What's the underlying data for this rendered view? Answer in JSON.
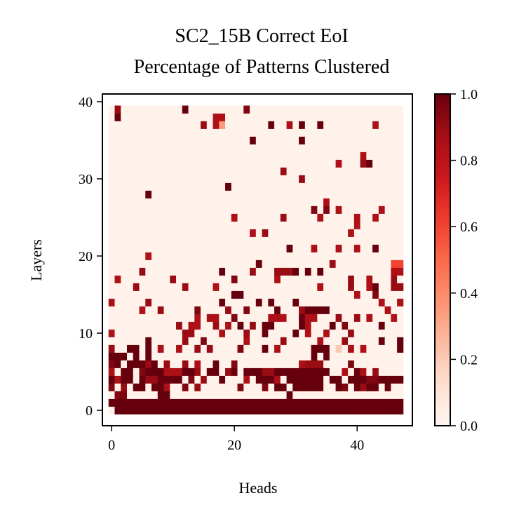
{
  "chart_data": {
    "type": "heatmap",
    "title_lines": [
      "SC2_15B Correct EoI",
      "Percentage of Patterns Clustered"
    ],
    "xlabel": "Heads",
    "ylabel": "Layers",
    "x_ticks": [
      "0",
      "20",
      "40"
    ],
    "y_ticks": [
      "0",
      "10",
      "20",
      "30",
      "40"
    ],
    "colorbar_ticks": [
      "0.0",
      "0.2",
      "0.4",
      "0.6",
      "0.8",
      "1.0"
    ],
    "n_heads": 48,
    "n_layers": 40,
    "xlim": [
      -1.5,
      49
    ],
    "ylim": [
      -2,
      41
    ],
    "vmin": 0.0,
    "vmax": 1.0,
    "colormap": "Reds",
    "background_value": 0.02,
    "notes_rows": "rows list [layer, [[head_start, head_end_inclusive, value], ...]]; cells not listed hold background_value",
    "rows": [
      [
        0,
        [
          [
            1,
            47,
            1.0
          ]
        ]
      ],
      [
        1,
        [
          [
            0,
            0,
            1.0
          ],
          [
            1,
            47,
            1.0
          ]
        ]
      ],
      [
        2,
        [
          [
            1,
            2,
            0.95
          ],
          [
            8,
            8,
            1.0
          ],
          [
            9,
            9,
            1.0
          ],
          [
            29,
            29,
            1.0
          ]
        ]
      ],
      [
        3,
        [
          [
            0,
            0,
            0.95
          ],
          [
            2,
            2,
            0.9
          ],
          [
            4,
            5,
            1.0
          ],
          [
            7,
            8,
            1.0
          ],
          [
            9,
            9,
            0.85
          ],
          [
            12,
            12,
            0.95
          ],
          [
            14,
            14,
            0.9
          ],
          [
            21,
            21,
            0.95
          ],
          [
            25,
            25,
            0.95
          ],
          [
            27,
            28,
            1.0
          ],
          [
            30,
            34,
            1.0
          ],
          [
            37,
            37,
            1.0
          ],
          [
            38,
            38,
            0.95
          ],
          [
            40,
            40,
            1.0
          ],
          [
            41,
            41,
            0.9
          ],
          [
            42,
            43,
            1.0
          ],
          [
            45,
            45,
            1.0
          ]
        ]
      ],
      [
        4,
        [
          [
            0,
            0,
            1.0
          ],
          [
            1,
            1,
            0.85
          ],
          [
            2,
            3,
            1.0
          ],
          [
            5,
            5,
            1.0
          ],
          [
            6,
            7,
            0.9
          ],
          [
            8,
            11,
            1.0
          ],
          [
            13,
            13,
            0.95
          ],
          [
            15,
            15,
            0.9
          ],
          [
            18,
            18,
            1.0
          ],
          [
            22,
            22,
            0.85
          ],
          [
            24,
            26,
            1.0
          ],
          [
            27,
            27,
            0.85
          ],
          [
            29,
            34,
            1.0
          ],
          [
            36,
            37,
            1.0
          ],
          [
            39,
            41,
            1.0
          ],
          [
            42,
            43,
            0.95
          ],
          [
            44,
            47,
            1.0
          ]
        ]
      ],
      [
        5,
        [
          [
            0,
            0,
            0.85
          ],
          [
            2,
            3,
            1.0
          ],
          [
            5,
            5,
            0.95
          ],
          [
            6,
            8,
            1.0
          ],
          [
            9,
            11,
            0.85
          ],
          [
            12,
            13,
            1.0
          ],
          [
            14,
            14,
            0.9
          ],
          [
            16,
            17,
            1.0
          ],
          [
            19,
            19,
            0.9
          ],
          [
            20,
            20,
            1.0
          ],
          [
            22,
            24,
            1.0
          ],
          [
            25,
            26,
            0.9
          ],
          [
            27,
            35,
            1.0
          ],
          [
            38,
            38,
            0.85
          ],
          [
            40,
            40,
            1.0
          ],
          [
            41,
            41,
            0.85
          ],
          [
            43,
            43,
            0.9
          ]
        ]
      ],
      [
        6,
        [
          [
            0,
            0,
            0.95
          ],
          [
            1,
            1,
            1.0
          ],
          [
            3,
            5,
            1.0
          ],
          [
            6,
            6,
            0.9
          ],
          [
            7,
            7,
            1.0
          ],
          [
            9,
            9,
            0.9
          ],
          [
            12,
            12,
            0.9
          ],
          [
            14,
            14,
            0.85
          ],
          [
            17,
            17,
            1.0
          ],
          [
            20,
            20,
            0.95
          ],
          [
            31,
            31,
            0.85
          ],
          [
            32,
            34,
            0.9
          ],
          [
            39,
            39,
            0.95
          ]
        ]
      ],
      [
        7,
        [
          [
            0,
            2,
            1.0
          ],
          [
            4,
            4,
            1.0
          ],
          [
            6,
            6,
            1.0
          ],
          [
            33,
            33,
            1.0
          ],
          [
            35,
            35,
            1.0
          ]
        ]
      ],
      [
        8,
        [
          [
            0,
            0,
            0.9
          ],
          [
            3,
            4,
            1.0
          ],
          [
            6,
            6,
            1.0
          ],
          [
            8,
            8,
            0.85
          ],
          [
            11,
            11,
            0.85
          ],
          [
            14,
            14,
            0.9
          ],
          [
            16,
            16,
            0.9
          ],
          [
            21,
            21,
            0.95
          ],
          [
            25,
            25,
            1.0
          ],
          [
            27,
            27,
            0.85
          ],
          [
            33,
            35,
            1.0
          ],
          [
            37,
            37,
            0.2
          ],
          [
            39,
            39,
            0.85
          ],
          [
            41,
            41,
            0.85
          ],
          [
            47,
            47,
            1.0
          ]
        ]
      ],
      [
        9,
        [
          [
            6,
            6,
            1.0
          ],
          [
            12,
            12,
            0.9
          ],
          [
            15,
            15,
            0.95
          ],
          [
            22,
            22,
            0.85
          ],
          [
            28,
            28,
            0.9
          ],
          [
            34,
            34,
            0.85
          ],
          [
            38,
            38,
            0.9
          ],
          [
            44,
            44,
            1.0
          ],
          [
            47,
            47,
            1.0
          ]
        ]
      ],
      [
        10,
        [
          [
            0,
            0,
            0.85
          ],
          [
            12,
            13,
            0.9
          ],
          [
            18,
            18,
            0.85
          ],
          [
            22,
            22,
            0.9
          ],
          [
            25,
            25,
            1.0
          ],
          [
            30,
            30,
            1.0
          ],
          [
            32,
            32,
            0.85
          ],
          [
            35,
            35,
            0.85
          ],
          [
            39,
            39,
            0.9
          ]
        ]
      ],
      [
        11,
        [
          [
            11,
            11,
            0.9
          ],
          [
            13,
            14,
            0.85
          ],
          [
            17,
            17,
            0.9
          ],
          [
            19,
            19,
            0.85
          ],
          [
            21,
            21,
            1.0
          ],
          [
            23,
            23,
            0.9
          ],
          [
            25,
            26,
            1.0
          ],
          [
            31,
            31,
            1.0
          ],
          [
            32,
            32,
            0.85
          ],
          [
            36,
            36,
            1.0
          ],
          [
            38,
            38,
            0.95
          ],
          [
            44,
            44,
            1.0
          ]
        ]
      ],
      [
        12,
        [
          [
            14,
            14,
            0.85
          ],
          [
            16,
            17,
            0.85
          ],
          [
            20,
            20,
            0.95
          ],
          [
            26,
            28,
            0.85
          ],
          [
            31,
            31,
            1.0
          ],
          [
            32,
            33,
            0.85
          ],
          [
            37,
            37,
            0.9
          ],
          [
            40,
            40,
            0.9
          ],
          [
            42,
            42,
            0.85
          ],
          [
            46,
            46,
            0.85
          ]
        ]
      ],
      [
        13,
        [
          [
            5,
            5,
            0.85
          ],
          [
            8,
            8,
            0.9
          ],
          [
            14,
            14,
            0.95
          ],
          [
            19,
            19,
            0.9
          ],
          [
            22,
            22,
            0.95
          ],
          [
            27,
            27,
            1.0
          ],
          [
            31,
            31,
            0.9
          ],
          [
            32,
            35,
            1.0
          ],
          [
            45,
            45,
            0.85
          ]
        ]
      ],
      [
        14,
        [
          [
            0,
            0,
            0.85
          ],
          [
            6,
            6,
            0.9
          ],
          [
            18,
            18,
            1.0
          ],
          [
            24,
            24,
            1.0
          ],
          [
            26,
            26,
            1.0
          ],
          [
            30,
            30,
            1.0
          ],
          [
            44,
            44,
            0.85
          ],
          [
            47,
            47,
            0.85
          ]
        ]
      ],
      [
        15,
        [
          [
            20,
            21,
            1.0
          ],
          [
            40,
            40,
            0.85
          ],
          [
            43,
            43,
            0.95
          ]
        ]
      ],
      [
        16,
        [
          [
            4,
            4,
            0.9
          ],
          [
            12,
            12,
            0.9
          ],
          [
            17,
            17,
            0.85
          ],
          [
            34,
            34,
            0.85
          ],
          [
            39,
            39,
            0.9
          ],
          [
            42,
            42,
            0.85
          ],
          [
            43,
            43,
            1.0
          ],
          [
            46,
            47,
            0.9
          ]
        ]
      ],
      [
        17,
        [
          [
            1,
            1,
            0.85
          ],
          [
            10,
            10,
            0.9
          ],
          [
            20,
            20,
            0.95
          ],
          [
            27,
            27,
            0.85
          ],
          [
            39,
            39,
            0.9
          ],
          [
            42,
            42,
            0.85
          ],
          [
            46,
            46,
            0.9
          ]
        ]
      ],
      [
        18,
        [
          [
            5,
            5,
            0.9
          ],
          [
            18,
            18,
            1.0
          ],
          [
            23,
            23,
            0.9
          ],
          [
            27,
            29,
            0.9
          ],
          [
            30,
            30,
            1.0
          ],
          [
            32,
            32,
            1.0
          ],
          [
            34,
            34,
            1.0
          ],
          [
            46,
            47,
            0.85
          ]
        ]
      ],
      [
        19,
        [
          [
            24,
            24,
            1.0
          ],
          [
            36,
            36,
            0.9
          ],
          [
            46,
            47,
            0.6
          ]
        ]
      ],
      [
        20,
        [
          [
            6,
            6,
            0.85
          ]
        ]
      ],
      [
        21,
        [
          [
            29,
            29,
            1.0
          ],
          [
            33,
            33,
            0.85
          ],
          [
            37,
            37,
            0.85
          ],
          [
            40,
            40,
            0.85
          ],
          [
            43,
            43,
            1.0
          ]
        ]
      ],
      [
        23,
        [
          [
            23,
            23,
            0.85
          ],
          [
            25,
            25,
            0.9
          ],
          [
            39,
            39,
            0.85
          ]
        ]
      ],
      [
        24,
        [
          [
            40,
            40,
            0.85
          ]
        ]
      ],
      [
        25,
        [
          [
            20,
            20,
            0.85
          ],
          [
            28,
            28,
            0.9
          ],
          [
            34,
            34,
            0.85
          ],
          [
            40,
            40,
            0.85
          ],
          [
            43,
            43,
            0.85
          ]
        ]
      ],
      [
        26,
        [
          [
            33,
            33,
            0.95
          ],
          [
            35,
            35,
            0.95
          ],
          [
            37,
            37,
            0.85
          ],
          [
            44,
            44,
            0.85
          ]
        ]
      ],
      [
        27,
        [
          [
            35,
            35,
            0.85
          ]
        ]
      ],
      [
        28,
        [
          [
            6,
            6,
            1.0
          ]
        ]
      ],
      [
        29,
        [
          [
            19,
            19,
            1.0
          ]
        ]
      ],
      [
        30,
        [
          [
            31,
            31,
            0.9
          ]
        ]
      ],
      [
        31,
        [
          [
            28,
            28,
            0.9
          ]
        ]
      ],
      [
        32,
        [
          [
            37,
            37,
            0.85
          ],
          [
            41,
            41,
            0.9
          ],
          [
            42,
            42,
            1.0
          ]
        ]
      ],
      [
        33,
        [
          [
            41,
            41,
            0.85
          ]
        ]
      ],
      [
        35,
        [
          [
            23,
            23,
            1.0
          ],
          [
            31,
            31,
            1.0
          ]
        ]
      ],
      [
        37,
        [
          [
            15,
            15,
            0.9
          ],
          [
            17,
            17,
            0.85
          ],
          [
            18,
            18,
            0.35
          ],
          [
            26,
            26,
            1.0
          ],
          [
            29,
            29,
            0.85
          ],
          [
            31,
            31,
            1.0
          ],
          [
            34,
            34,
            1.0
          ],
          [
            43,
            43,
            0.85
          ]
        ]
      ],
      [
        38,
        [
          [
            1,
            1,
            1.0
          ],
          [
            17,
            18,
            0.85
          ]
        ]
      ],
      [
        39,
        [
          [
            1,
            1,
            0.9
          ],
          [
            12,
            12,
            1.0
          ],
          [
            22,
            22,
            0.95
          ]
        ]
      ]
    ]
  },
  "colors": {
    "background": "#ffffff",
    "axis": "#000000"
  }
}
